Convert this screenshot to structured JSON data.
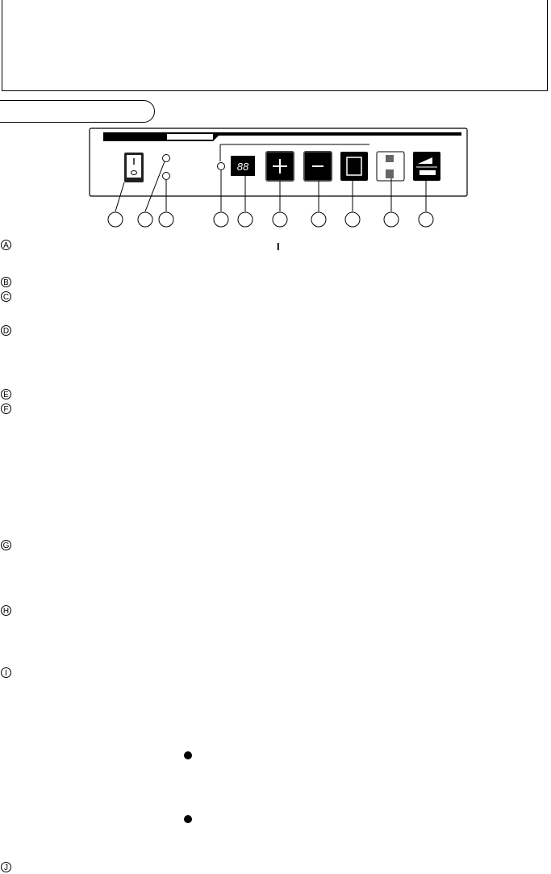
{
  "panel": {
    "display": "88",
    "power_switch": {
      "on": "I",
      "off": "O"
    }
  },
  "labels": [
    "A",
    "B",
    "C",
    "D",
    "E",
    "F",
    "G",
    "H",
    "I",
    "J"
  ],
  "section_a_symbol": "I"
}
